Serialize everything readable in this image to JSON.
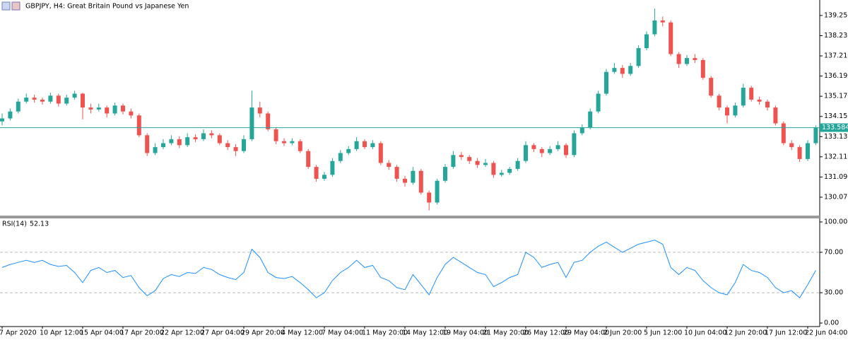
{
  "chart_data": [
    {
      "type": "candlestick",
      "title": "GBPJPY, H4:  Great Britain Pound vs Japanese Yen",
      "up_color": "#26a69a",
      "down_color": "#ef5350",
      "ylim": [
        129.14,
        139.89
      ],
      "yticks": [
        {
          "value": 130.07,
          "label": "130.070"
        },
        {
          "value": 131.09,
          "label": "131.090"
        },
        {
          "value": 132.11,
          "label": "132.110"
        },
        {
          "value": 133.13,
          "label": "133.130"
        },
        {
          "value": 134.15,
          "label": "134.150"
        },
        {
          "value": 135.17,
          "label": "135.170"
        },
        {
          "value": 136.19,
          "label": "136.190"
        },
        {
          "value": 137.21,
          "label": "137.210"
        },
        {
          "value": 138.23,
          "label": "138.230"
        },
        {
          "value": 139.25,
          "label": "139.250"
        }
      ],
      "current_price": 133.584,
      "current_price_color": "#26a69a",
      "categories": [
        "7 Apr 2020",
        null,
        null,
        null,
        null,
        "10 Apr 12:00",
        null,
        null,
        null,
        null,
        "15 Apr 04:00",
        null,
        null,
        null,
        null,
        "17 Apr 20:00",
        null,
        null,
        null,
        null,
        "22 Apr 12:00",
        null,
        null,
        null,
        null,
        "27 Apr 04:00",
        null,
        null,
        null,
        null,
        "29 Apr 20:00",
        null,
        null,
        null,
        null,
        "4 May 12:00",
        null,
        null,
        null,
        null,
        "7 May 04:00",
        null,
        null,
        null,
        null,
        "11 May 20:00",
        null,
        null,
        null,
        null,
        "14 May 12:00",
        null,
        null,
        null,
        null,
        "19 May 04:00",
        null,
        null,
        null,
        null,
        "21 May 20:00",
        null,
        null,
        null,
        null,
        "26 May 12:00",
        null,
        null,
        null,
        null,
        "29 May 04:00",
        null,
        null,
        null,
        null,
        "2 Jun 20:00",
        null,
        null,
        null,
        null,
        "5 Jun 12:00",
        null,
        null,
        null,
        null,
        "10 Jun 04:00",
        null,
        null,
        null,
        null,
        "12 Jun 20:00",
        null,
        null,
        null,
        null,
        "17 Jun 12:00",
        null,
        null,
        null,
        null,
        "22 Jun 04:00",
        null
      ],
      "ohlc": [
        [
          133.9,
          134.3,
          133.7,
          134.05
        ],
        [
          134.05,
          134.55,
          133.95,
          134.4
        ],
        [
          134.4,
          135.05,
          134.3,
          134.9
        ],
        [
          134.9,
          135.3,
          134.8,
          135.1
        ],
        [
          135.1,
          135.25,
          134.85,
          135.0
        ],
        [
          135.0,
          135.1,
          134.75,
          134.9
        ],
        [
          134.9,
          135.35,
          134.8,
          135.2
        ],
        [
          135.2,
          135.3,
          134.65,
          134.8
        ],
        [
          134.8,
          135.25,
          134.7,
          135.1
        ],
        [
          135.1,
          135.45,
          135.0,
          135.3
        ],
        [
          135.3,
          135.35,
          134.0,
          134.6
        ],
        [
          134.6,
          134.8,
          134.3,
          134.5
        ],
        [
          134.5,
          134.8,
          134.4,
          134.6
        ],
        [
          134.6,
          134.7,
          134.1,
          134.3
        ],
        [
          134.3,
          134.85,
          134.2,
          134.7
        ],
        [
          134.7,
          134.8,
          134.25,
          134.4
        ],
        [
          134.4,
          134.55,
          134.05,
          134.2
        ],
        [
          134.2,
          134.3,
          133.1,
          133.2
        ],
        [
          133.2,
          133.3,
          132.15,
          132.3
        ],
        [
          132.3,
          132.8,
          132.2,
          132.6
        ],
        [
          132.6,
          133.0,
          132.5,
          132.8
        ],
        [
          132.8,
          133.2,
          132.7,
          133.0
        ],
        [
          133.0,
          133.15,
          132.55,
          132.7
        ],
        [
          132.7,
          133.3,
          132.6,
          133.1
        ],
        [
          133.1,
          133.25,
          132.85,
          133.0
        ],
        [
          133.0,
          133.5,
          132.9,
          133.3
        ],
        [
          133.3,
          133.45,
          133.05,
          133.2
        ],
        [
          133.2,
          133.3,
          132.7,
          132.8
        ],
        [
          132.8,
          132.95,
          132.45,
          132.6
        ],
        [
          132.6,
          132.75,
          132.15,
          132.4
        ],
        [
          132.4,
          133.2,
          132.3,
          133.0
        ],
        [
          133.0,
          135.45,
          132.9,
          134.6
        ],
        [
          134.6,
          134.9,
          134.1,
          134.3
        ],
        [
          134.3,
          134.4,
          133.4,
          133.5
        ],
        [
          133.5,
          133.6,
          132.75,
          132.9
        ],
        [
          132.9,
          133.05,
          132.65,
          132.8
        ],
        [
          132.8,
          133.05,
          132.7,
          132.9
        ],
        [
          132.9,
          133.0,
          132.3,
          132.4
        ],
        [
          132.4,
          132.5,
          131.5,
          131.6
        ],
        [
          131.6,
          131.7,
          130.85,
          131.0
        ],
        [
          131.0,
          131.35,
          130.9,
          131.2
        ],
        [
          131.2,
          132.05,
          131.1,
          131.9
        ],
        [
          131.9,
          132.45,
          131.8,
          132.3
        ],
        [
          132.3,
          132.65,
          132.2,
          132.5
        ],
        [
          132.5,
          133.1,
          132.4,
          132.9
        ],
        [
          132.9,
          133.0,
          132.5,
          132.6
        ],
        [
          132.6,
          132.95,
          132.5,
          132.8
        ],
        [
          132.8,
          132.9,
          131.7,
          131.8
        ],
        [
          131.8,
          131.95,
          131.45,
          131.6
        ],
        [
          131.6,
          131.7,
          130.85,
          131.0
        ],
        [
          131.0,
          131.15,
          130.6,
          130.8
        ],
        [
          130.8,
          131.6,
          130.7,
          131.4
        ],
        [
          131.4,
          131.5,
          130.2,
          130.3
        ],
        [
          130.3,
          130.4,
          129.4,
          129.8
        ],
        [
          129.8,
          131.0,
          129.7,
          130.9
        ],
        [
          130.9,
          131.75,
          130.8,
          131.6
        ],
        [
          131.6,
          132.4,
          131.5,
          132.2
        ],
        [
          132.2,
          132.35,
          131.95,
          132.1
        ],
        [
          132.1,
          132.2,
          131.75,
          131.9
        ],
        [
          131.9,
          132.05,
          131.55,
          131.7
        ],
        [
          131.7,
          132.0,
          131.6,
          131.8
        ],
        [
          131.8,
          131.9,
          131.05,
          131.2
        ],
        [
          131.2,
          131.45,
          131.1,
          131.3
        ],
        [
          131.3,
          131.6,
          131.2,
          131.5
        ],
        [
          131.5,
          132.05,
          131.4,
          131.9
        ],
        [
          131.9,
          132.9,
          131.8,
          132.7
        ],
        [
          132.7,
          132.8,
          132.35,
          132.5
        ],
        [
          132.5,
          132.6,
          132.1,
          132.3
        ],
        [
          132.3,
          132.65,
          132.2,
          132.5
        ],
        [
          132.5,
          132.9,
          132.4,
          132.7
        ],
        [
          132.7,
          132.8,
          132.05,
          132.2
        ],
        [
          132.2,
          133.45,
          132.1,
          133.3
        ],
        [
          133.3,
          133.75,
          133.2,
          133.6
        ],
        [
          133.6,
          134.55,
          133.5,
          134.4
        ],
        [
          134.4,
          135.45,
          134.3,
          135.3
        ],
        [
          135.3,
          136.55,
          135.2,
          136.4
        ],
        [
          136.4,
          136.85,
          136.3,
          136.6
        ],
        [
          136.6,
          136.75,
          136.1,
          136.3
        ],
        [
          136.3,
          136.85,
          136.2,
          136.7
        ],
        [
          136.7,
          137.75,
          136.6,
          137.6
        ],
        [
          137.6,
          138.45,
          137.5,
          138.3
        ],
        [
          138.3,
          139.6,
          138.2,
          139.0
        ],
        [
          139.0,
          139.2,
          138.7,
          138.9
        ],
        [
          138.9,
          139.0,
          137.2,
          137.3
        ],
        [
          137.3,
          137.4,
          136.6,
          136.8
        ],
        [
          136.8,
          137.25,
          136.7,
          137.1
        ],
        [
          137.1,
          137.3,
          136.85,
          137.0
        ],
        [
          137.0,
          137.1,
          136.0,
          136.1
        ],
        [
          136.1,
          136.2,
          135.1,
          135.2
        ],
        [
          135.2,
          135.3,
          134.45,
          134.6
        ],
        [
          134.6,
          134.7,
          133.8,
          134.2
        ],
        [
          134.2,
          134.85,
          134.1,
          134.7
        ],
        [
          134.7,
          135.8,
          134.6,
          135.6
        ],
        [
          135.6,
          135.7,
          134.9,
          135.0
        ],
        [
          135.0,
          135.15,
          134.75,
          134.9
        ],
        [
          134.9,
          135.0,
          134.45,
          134.6
        ],
        [
          134.6,
          134.7,
          133.7,
          133.8
        ],
        [
          133.8,
          133.9,
          132.7,
          132.8
        ],
        [
          132.8,
          132.95,
          132.45,
          132.6
        ],
        [
          132.6,
          132.7,
          131.85,
          132.0
        ],
        [
          132.0,
          132.95,
          131.9,
          132.8
        ],
        [
          132.8,
          133.7,
          132.7,
          133.584
        ]
      ]
    },
    {
      "type": "line",
      "name": "RSI(14)",
      "color": "#1e90ff",
      "grid": "dashed",
      "ylim": [
        0,
        100
      ],
      "yticks": [
        {
          "value": 0,
          "label": "0.00"
        },
        {
          "value": 30,
          "label": "30.00"
        },
        {
          "value": 70,
          "label": "70.00"
        },
        {
          "value": 100,
          "label": "100.00"
        }
      ],
      "values": [
        55,
        58,
        60,
        62,
        60,
        62,
        58,
        56,
        57,
        50,
        40,
        52,
        55,
        50,
        52,
        45,
        47,
        35,
        27,
        32,
        44,
        48,
        46,
        50,
        49,
        55,
        53,
        48,
        45,
        43,
        50,
        73,
        65,
        50,
        45,
        44,
        46,
        40,
        33,
        25,
        30,
        42,
        50,
        55,
        62,
        55,
        57,
        45,
        42,
        35,
        33,
        48,
        38,
        28,
        45,
        58,
        65,
        60,
        55,
        50,
        48,
        36,
        40,
        45,
        48,
        70,
        65,
        55,
        58,
        60,
        45,
        60,
        62,
        70,
        76,
        80,
        75,
        70,
        74,
        78,
        80,
        82,
        78,
        55,
        48,
        55,
        52,
        42,
        35,
        30,
        28,
        40,
        58,
        52,
        50,
        45,
        35,
        30,
        32,
        25,
        38,
        52.13
      ]
    }
  ]
}
